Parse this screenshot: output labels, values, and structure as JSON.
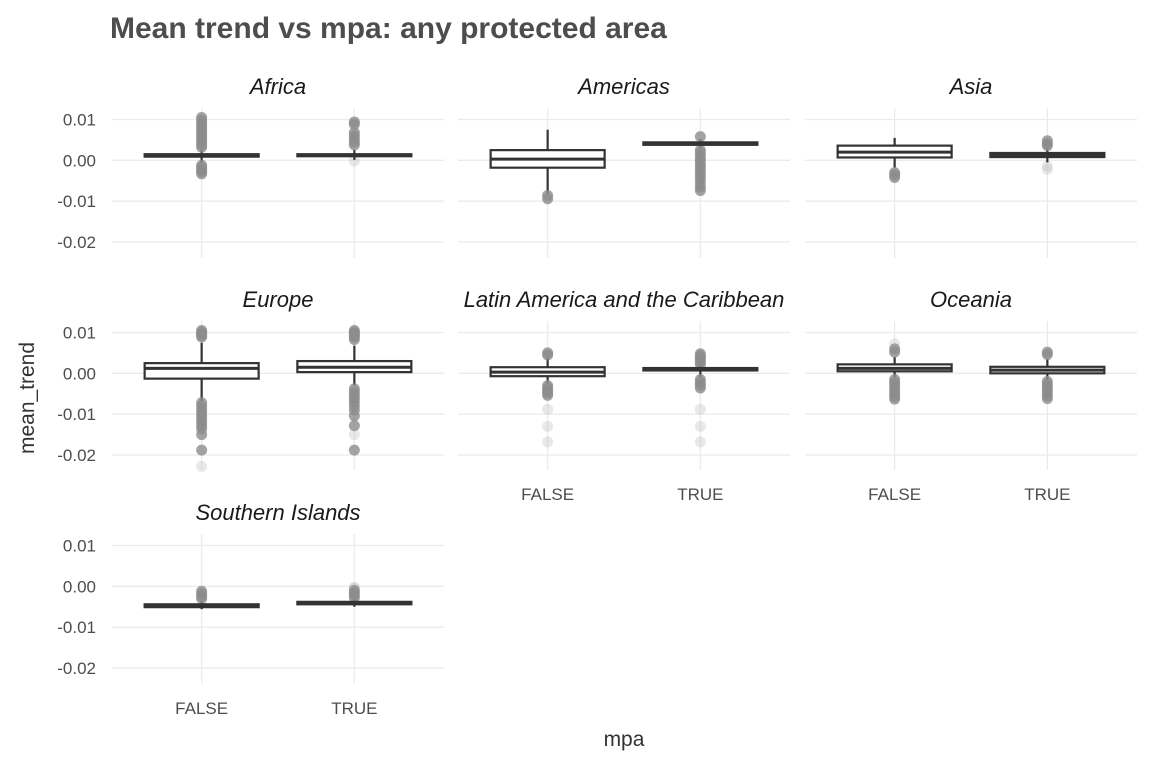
{
  "chart_data": {
    "type": "boxplot",
    "title": "Mean trend vs mpa: any protected area",
    "xlabel": "mpa",
    "ylabel": "mean_trend",
    "categories": [
      "FALSE",
      "TRUE"
    ],
    "y_ticks": [
      0.01,
      0.0,
      -0.01,
      -0.02
    ],
    "y_tick_labels": [
      "0.01",
      "0.00",
      "-0.01",
      "-0.02"
    ],
    "ylim": [
      -0.024,
      0.0115
    ],
    "grid": true,
    "facets": [
      {
        "name": "Africa",
        "boxes": [
          {
            "category": "FALSE",
            "q1": 0.0009,
            "median": 0.0012,
            "q3": 0.0015,
            "whisker_low": -0.0008,
            "whisker_high": 0.0028,
            "outliers": [
              0.0105,
              0.0098,
              0.0092,
              0.0086,
              0.008,
              0.0074,
              0.0068,
              0.0062,
              0.0056,
              0.005,
              0.0044,
              0.0038,
              0.0032,
              -0.0012,
              -0.0018,
              -0.0024,
              -0.0028,
              -0.0033
            ],
            "faint_outliers": []
          },
          {
            "category": "TRUE",
            "q1": 0.001,
            "median": 0.0012,
            "q3": 0.0015,
            "whisker_low": 0.0001,
            "whisker_high": 0.0026,
            "outliers": [
              0.0094,
              0.0088,
              0.0068,
              0.006,
              0.0052,
              0.0045,
              0.0038
            ],
            "faint_outliers": [
              -0.0002
            ]
          }
        ]
      },
      {
        "name": "Americas",
        "boxes": [
          {
            "category": "FALSE",
            "q1": -0.0018,
            "median": 0.0003,
            "q3": 0.0025,
            "whisker_low": -0.0082,
            "whisker_high": 0.0075,
            "outliers": [
              -0.0086,
              -0.0094
            ],
            "faint_outliers": []
          },
          {
            "category": "TRUE",
            "q1": 0.0038,
            "median": 0.0041,
            "q3": 0.0044,
            "whisker_low": 0.003,
            "whisker_high": 0.0052,
            "outliers": [
              0.0058,
              0.0025,
              0.0018,
              0.001,
              0.0002,
              -0.0006,
              -0.0014,
              -0.0022,
              -0.003,
              -0.0038,
              -0.0046,
              -0.0056,
              -0.0066,
              -0.0074
            ],
            "faint_outliers": []
          }
        ]
      },
      {
        "name": "Asia",
        "boxes": [
          {
            "category": "FALSE",
            "q1": 0.0007,
            "median": 0.002,
            "q3": 0.0036,
            "whisker_low": -0.0018,
            "whisker_high": 0.0055,
            "outliers": [
              -0.003,
              -0.0036,
              -0.0042
            ],
            "faint_outliers": []
          },
          {
            "category": "TRUE",
            "q1": 0.0008,
            "median": 0.0013,
            "q3": 0.0018,
            "whisker_low": -0.0005,
            "whisker_high": 0.003,
            "outliers": [
              0.0048,
              0.0041,
              0.0036
            ],
            "faint_outliers": [
              -0.0014,
              -0.0022
            ]
          }
        ]
      },
      {
        "name": "Europe",
        "boxes": [
          {
            "category": "FALSE",
            "q1": -0.0013,
            "median": 0.0012,
            "q3": 0.0025,
            "whisker_low": -0.0068,
            "whisker_high": 0.0075,
            "outliers": [
              0.0105,
              0.0101,
              0.0097,
              0.0093,
              0.0089,
              -0.0072,
              -0.008,
              -0.0088,
              -0.0096,
              -0.0104,
              -0.0112,
              -0.012,
              -0.0128,
              -0.0136,
              -0.015,
              -0.0188
            ],
            "faint_outliers": [
              -0.0228
            ]
          },
          {
            "category": "TRUE",
            "q1": 0.0003,
            "median": 0.0015,
            "q3": 0.003,
            "whisker_low": -0.003,
            "whisker_high": 0.0068,
            "outliers": [
              0.0105,
              0.0101,
              0.0097,
              0.0093,
              0.0089,
              0.0083,
              -0.0038,
              -0.0046,
              -0.0054,
              -0.0062,
              -0.007,
              -0.008,
              -0.009,
              -0.0104,
              -0.0128,
              -0.0188
            ],
            "faint_outliers": [
              -0.015
            ]
          }
        ]
      },
      {
        "name": "Latin America and the Caribbean",
        "boxes": [
          {
            "category": "FALSE",
            "q1": -0.0007,
            "median": 0.0003,
            "q3": 0.0015,
            "whisker_low": -0.0025,
            "whisker_high": 0.004,
            "outliers": [
              0.005,
              0.0045,
              -0.003,
              -0.0036,
              -0.0042,
              -0.0048,
              -0.0054
            ],
            "faint_outliers": [
              -0.0088,
              -0.013,
              -0.0168
            ]
          },
          {
            "category": "TRUE",
            "q1": 0.0007,
            "median": 0.001,
            "q3": 0.0013,
            "whisker_low": -0.001,
            "whisker_high": 0.003,
            "outliers": [
              0.0048,
              0.0043,
              0.0038,
              0.0033,
              0.0028,
              0.0022,
              -0.0015,
              -0.0022,
              -0.0029,
              -0.0036
            ],
            "faint_outliers": [
              -0.0088,
              -0.013,
              -0.0168
            ]
          }
        ]
      },
      {
        "name": "Oceania",
        "boxes": [
          {
            "category": "FALSE",
            "q1": 0.0005,
            "median": 0.0012,
            "q3": 0.0022,
            "whisker_low": -0.001,
            "whisker_high": 0.004,
            "outliers": [
              0.006,
              0.0052,
              -0.0015,
              -0.0022,
              -0.0029,
              -0.0036,
              -0.0043,
              -0.005,
              -0.0057,
              -0.0063
            ],
            "faint_outliers": [
              0.0072
            ]
          },
          {
            "category": "TRUE",
            "q1": 0.0,
            "median": 0.0008,
            "q3": 0.0016,
            "whisker_low": -0.0018,
            "whisker_high": 0.0036,
            "outliers": [
              0.0052,
              0.0046,
              -0.002,
              -0.0027,
              -0.0034,
              -0.0041,
              -0.0048,
              -0.0055,
              -0.0062
            ],
            "faint_outliers": []
          }
        ]
      },
      {
        "name": "Southern Islands",
        "boxes": [
          {
            "category": "FALSE",
            "q1": -0.0051,
            "median": -0.0048,
            "q3": -0.0044,
            "whisker_low": -0.0056,
            "whisker_high": -0.0035,
            "outliers": [
              -0.0012,
              -0.0018,
              -0.0024,
              -0.003
            ],
            "faint_outliers": []
          },
          {
            "category": "TRUE",
            "q1": -0.0044,
            "median": -0.0041,
            "q3": -0.0038,
            "whisker_low": -0.005,
            "whisker_high": -0.003,
            "outliers": [
              -0.001,
              -0.0016,
              -0.0022,
              -0.0028
            ],
            "faint_outliers": [
              -0.0002,
              -0.0005
            ]
          }
        ]
      }
    ]
  }
}
